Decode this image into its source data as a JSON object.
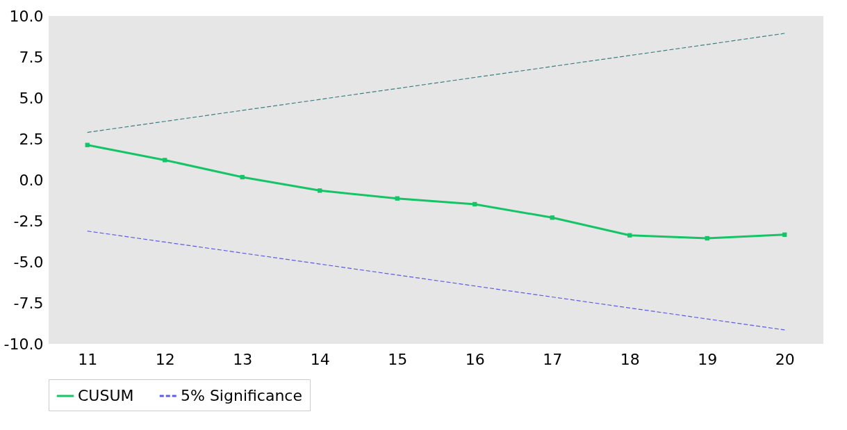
{
  "chart_data": {
    "type": "line",
    "categories": [
      "11",
      "12",
      "13",
      "14",
      "15",
      "16",
      "17",
      "18",
      "19",
      "20"
    ],
    "series": [
      {
        "name": "CUSUM",
        "color": "#14c466",
        "line_style": "solid",
        "marker": "square",
        "values": [
          2.13,
          1.21,
          0.17,
          -0.65,
          -1.13,
          -1.48,
          -2.3,
          -3.38,
          -3.56,
          -3.34
        ]
      },
      {
        "color": "#3d7f80",
        "line_style": "dashed",
        "marker": "none",
        "values": [
          2.9,
          3.57,
          4.24,
          4.91,
          5.58,
          6.25,
          6.92,
          7.59,
          8.26,
          8.94
        ]
      },
      {
        "name": "5% Significance",
        "color": "#5b5bf0",
        "line_style": "dashed",
        "marker": "none",
        "values": [
          -3.12,
          -3.79,
          -4.46,
          -5.13,
          -5.8,
          -6.47,
          -7.14,
          -7.81,
          -8.48,
          -9.15
        ]
      }
    ],
    "ylim": [
      -10,
      10
    ],
    "yticks": [
      {
        "value": -10,
        "label": "-10.0"
      },
      {
        "value": -7.5,
        "label": "-7.5"
      },
      {
        "value": -5,
        "label": "-5.0"
      },
      {
        "value": -2.5,
        "label": "-2.5"
      },
      {
        "value": 0,
        "label": "0.0"
      },
      {
        "value": 2.5,
        "label": "2.5"
      },
      {
        "value": 5,
        "label": "5.0"
      },
      {
        "value": 7.5,
        "label": "7.5"
      },
      {
        "value": 10,
        "label": "10.0"
      }
    ],
    "grid": false,
    "legend": "bottom"
  }
}
